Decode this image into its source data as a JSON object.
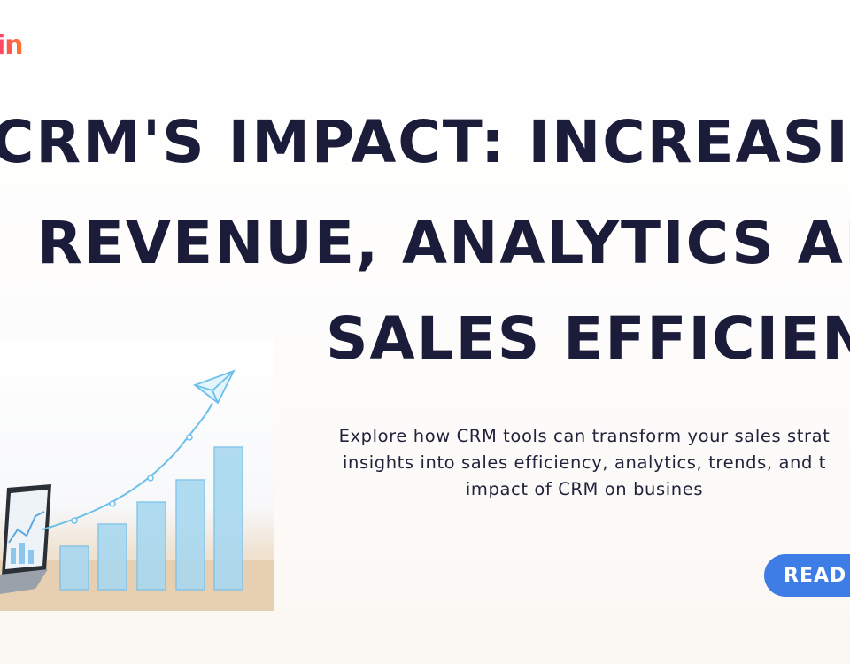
{
  "brand": {
    "logo_text": "in"
  },
  "headline": {
    "lines": [
      "CRM's Impact: Increasin",
      "Revenue, Analytics an",
      "Sales Efficien"
    ]
  },
  "description": {
    "lines": [
      "Explore how CRM tools can transform your sales strat",
      "insights into sales efficiency, analytics, trends, and t",
      "impact of CRM on busines"
    ]
  },
  "cta": {
    "label": "READ MORE"
  },
  "colors": {
    "headline": "#1b1b3a",
    "button": "#3f7de6",
    "chart_bars": "#9fd3ef",
    "trend_line": "#6cc0ea"
  },
  "illustration": {
    "icons": [
      "paper-plane-icon",
      "laptop-icon",
      "growth-bars-icon"
    ]
  }
}
